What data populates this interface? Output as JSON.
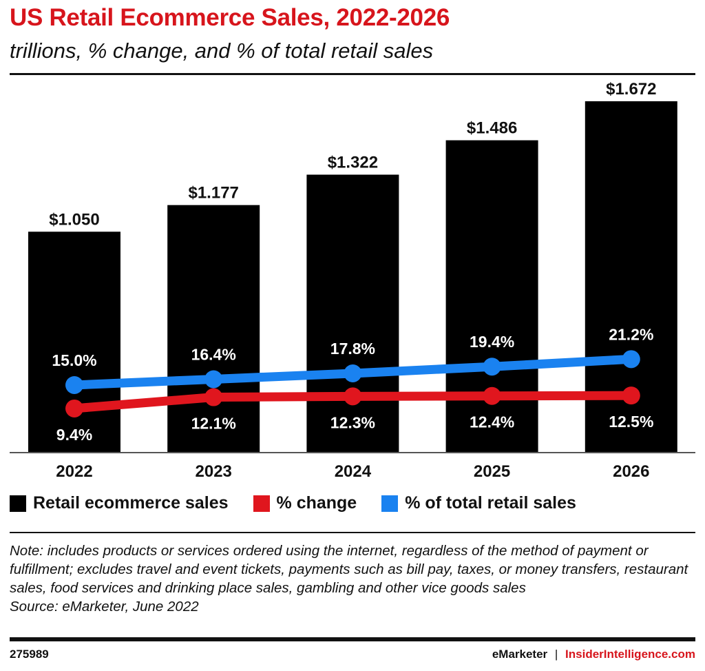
{
  "chart_data": {
    "type": "bar",
    "title": "US Retail Ecommerce Sales, 2022-2026",
    "subtitle": "trillions, % change, and % of total retail sales",
    "categories": [
      "2022",
      "2023",
      "2024",
      "2025",
      "2026"
    ],
    "series": [
      {
        "name": "Retail ecommerce sales",
        "type": "bar",
        "color": "#000000",
        "values": [
          1.05,
          1.177,
          1.322,
          1.486,
          1.672
        ],
        "labels": [
          "$1.050",
          "$1.177",
          "$1.322",
          "$1.486",
          "$1.672"
        ]
      },
      {
        "name": "% change",
        "type": "line",
        "color": "#e0161e",
        "values": [
          9.4,
          12.1,
          12.3,
          12.4,
          12.5
        ],
        "labels": [
          "9.4%",
          "12.1%",
          "12.3%",
          "12.4%",
          "12.5%"
        ]
      },
      {
        "name": "% of total retail sales",
        "type": "line",
        "color": "#1a82f0",
        "values": [
          15.0,
          16.4,
          17.8,
          19.4,
          21.2
        ],
        "labels": [
          "15.0%",
          "16.4%",
          "17.8%",
          "19.4%",
          "21.2%"
        ]
      }
    ],
    "ylim": [
      0,
      1.8
    ],
    "legend_position": "bottom",
    "grid": false
  },
  "note": "Note: includes products or services ordered using the internet, regardless of the method of payment or fulfillment; excludes travel and event tickets, payments such as bill pay, taxes, or money transfers, restaurant sales, food services and drinking place sales, gambling and other vice goods sales",
  "source": "Source: eMarketer, June 2022",
  "footer": {
    "id": "275989",
    "brand1": "eMarketer",
    "sep": "|",
    "brand2": "InsiderIntelligence.com"
  }
}
